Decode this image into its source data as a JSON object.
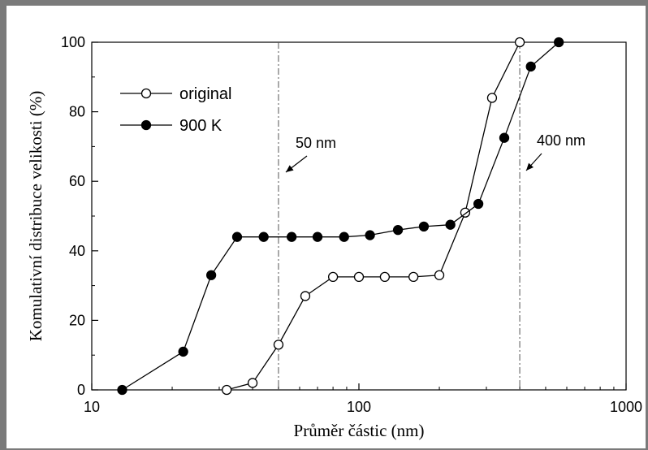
{
  "chart_data": {
    "type": "line",
    "xscale": "log",
    "xlim": [
      10,
      1000
    ],
    "ylim": [
      0,
      100
    ],
    "xlabel": "Průměr částic (nm)",
    "ylabel": "Komulativní distribuce velikosti (%)",
    "xticks": [
      10,
      100,
      1000
    ],
    "xtick_labels": [
      "10",
      "100",
      "1000"
    ],
    "yticks": [
      0,
      20,
      40,
      60,
      80,
      100
    ],
    "ytick_labels": [
      "0",
      "20",
      "40",
      "60",
      "80",
      "100"
    ],
    "legend_position": "top-left",
    "series": [
      {
        "name": "original",
        "marker": "open-circle",
        "color": "#000000",
        "x": [
          32,
          40,
          50,
          63,
          80,
          100,
          125,
          160,
          200,
          250,
          315,
          400
        ],
        "y": [
          0,
          2,
          13,
          27,
          32.5,
          32.5,
          32.5,
          32.5,
          33,
          51,
          84,
          100
        ]
      },
      {
        "name": "900 K",
        "marker": "filled-circle",
        "color": "#000000",
        "x": [
          13,
          22,
          28,
          35,
          44,
          56,
          70,
          88,
          110,
          140,
          175,
          220,
          280,
          350,
          440,
          560
        ],
        "y": [
          0,
          11,
          33,
          44,
          44,
          44,
          44,
          44,
          44.5,
          46,
          47,
          47.5,
          53.5,
          72.5,
          93,
          100
        ]
      }
    ],
    "annotations": [
      {
        "text": "50 nm",
        "x": 50
      },
      {
        "text": "400 nm",
        "x": 400
      }
    ]
  }
}
